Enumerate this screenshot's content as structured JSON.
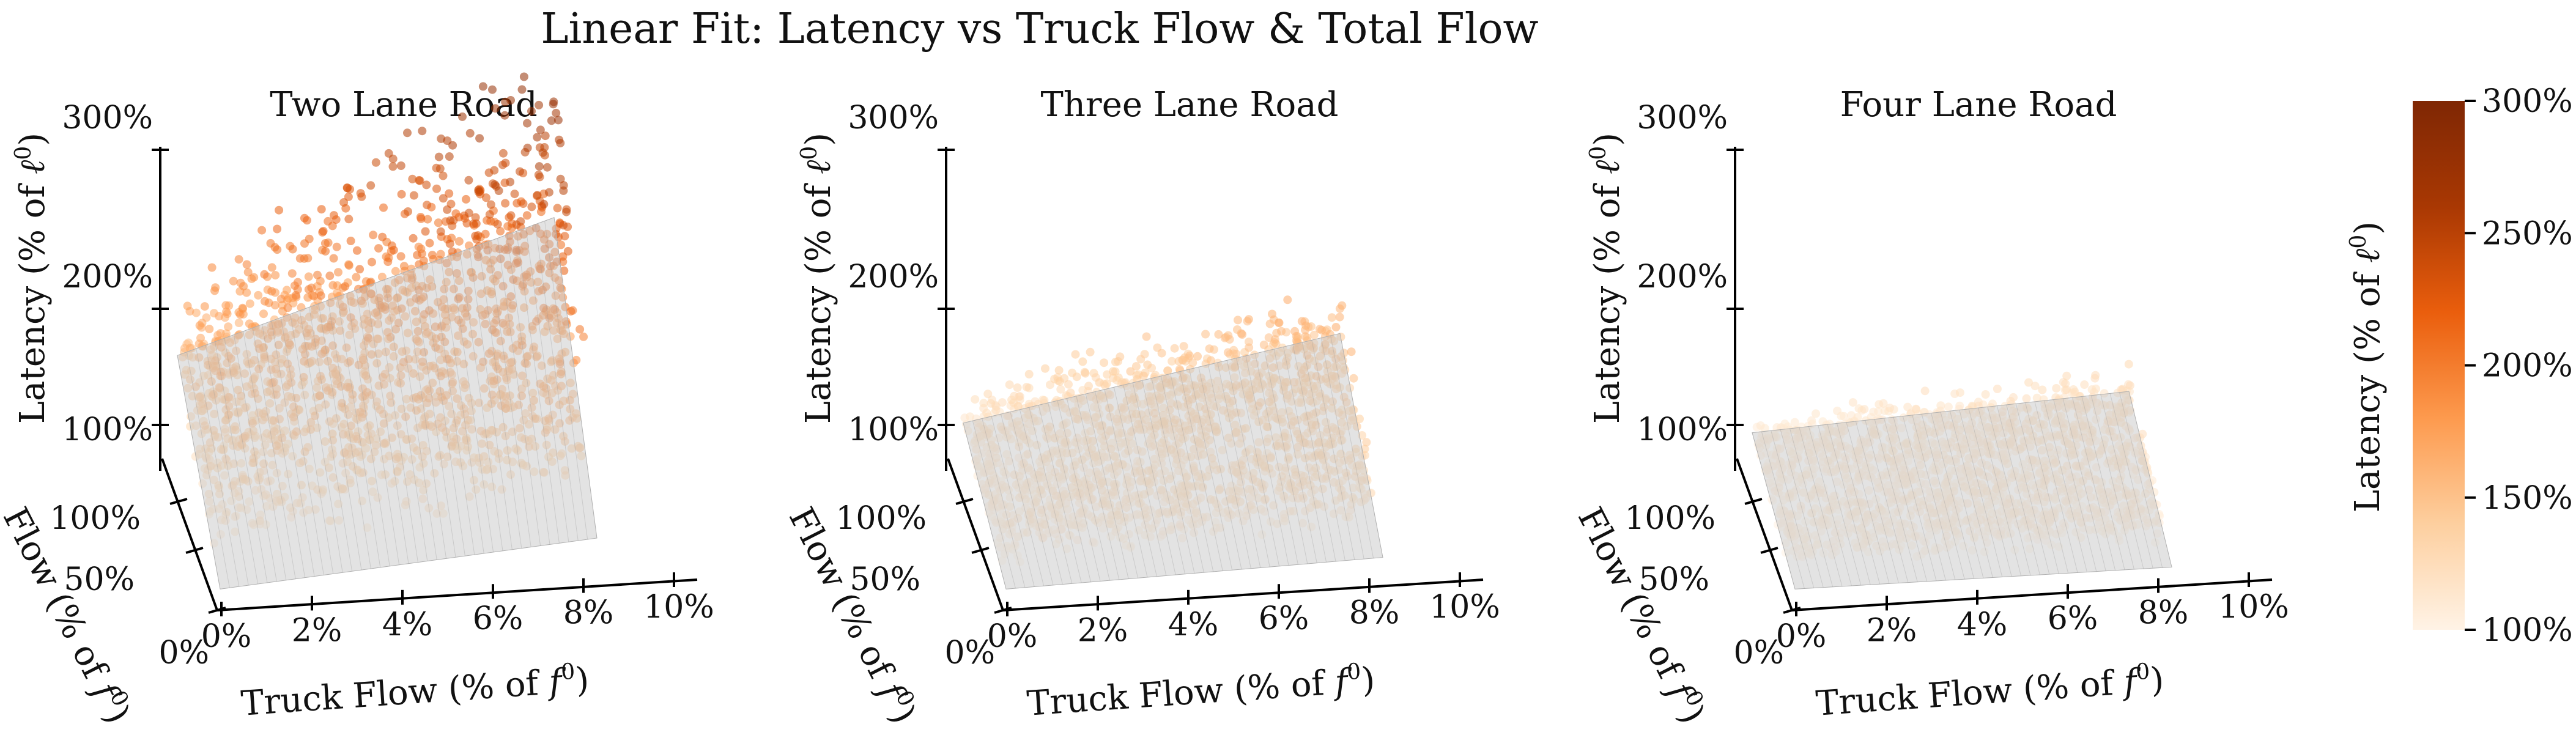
{
  "chart_data": {
    "type": "scatter",
    "title": "Linear Fit: Latency vs Truck Flow & Total Flow",
    "panels": [
      {
        "subtitle": "Two Lane Road",
        "xlabel": "Truck Flow (% of f0)",
        "ylabel": "Flow (% of f0)",
        "zlabel": "Latency (% of ℓ0)",
        "x_ticks": [
          "0%",
          "2%",
          "4%",
          "6%",
          "8%",
          "10%"
        ],
        "y_ticks": [
          "0%",
          "50%",
          "100%"
        ],
        "z_ticks": [
          "100%",
          "200%",
          "300%"
        ],
        "xlim": [
          0,
          10
        ],
        "ylim": [
          0,
          120
        ],
        "zlim": [
          90,
          310
        ],
        "fit_plane": {
          "latency_at_corners": {
            "x0_y0": 100,
            "x8_y0": 115,
            "x0_y120": 145,
            "x8_y120": 205
          }
        },
        "scatter_latency_range": [
          100,
          295
        ]
      },
      {
        "subtitle": "Three Lane Road",
        "xlabel": "Truck Flow (% of f0)",
        "ylabel": "Flow (% of f0)",
        "zlabel": "Latency (% of ℓ0)",
        "x_ticks": [
          "0%",
          "2%",
          "4%",
          "6%",
          "8%",
          "10%"
        ],
        "y_ticks": [
          "0%",
          "50%",
          "100%"
        ],
        "z_ticks": [
          "100%",
          "200%",
          "300%"
        ],
        "xlim": [
          0,
          10
        ],
        "ylim": [
          0,
          120
        ],
        "zlim": [
          90,
          310
        ],
        "fit_plane": {
          "latency_at_corners": {
            "x0_y0": 100,
            "x8_y0": 105,
            "x0_y120": 110,
            "x8_y120": 145
          }
        },
        "scatter_latency_range": [
          100,
          170
        ]
      },
      {
        "subtitle": "Four Lane Road",
        "xlabel": "Truck Flow (% of f0)",
        "ylabel": "Flow (% of f0)",
        "zlabel": "Latency (% of ℓ0)",
        "x_ticks": [
          "0%",
          "2%",
          "4%",
          "6%",
          "8%",
          "10%"
        ],
        "y_ticks": [
          "0%",
          "50%",
          "100%"
        ],
        "z_ticks": [
          "100%",
          "200%",
          "300%"
        ],
        "xlim": [
          0,
          10
        ],
        "ylim": [
          0,
          120
        ],
        "zlim": [
          90,
          310
        ],
        "fit_plane": {
          "latency_at_corners": {
            "x0_y0": 100,
            "x8_y0": 100,
            "x0_y120": 105,
            "x8_y120": 115
          }
        },
        "scatter_latency_range": [
          100,
          130
        ]
      }
    ],
    "colorbar": {
      "label": "Latency (% of ℓ0)",
      "ticks": [
        "100%",
        "150%",
        "200%",
        "250%",
        "300%"
      ],
      "range": [
        100,
        300
      ],
      "colors": [
        "#fff3e6",
        "#fdcf9f",
        "#fd9a4e",
        "#ea5e0d",
        "#a93803",
        "#7f2704"
      ]
    }
  }
}
